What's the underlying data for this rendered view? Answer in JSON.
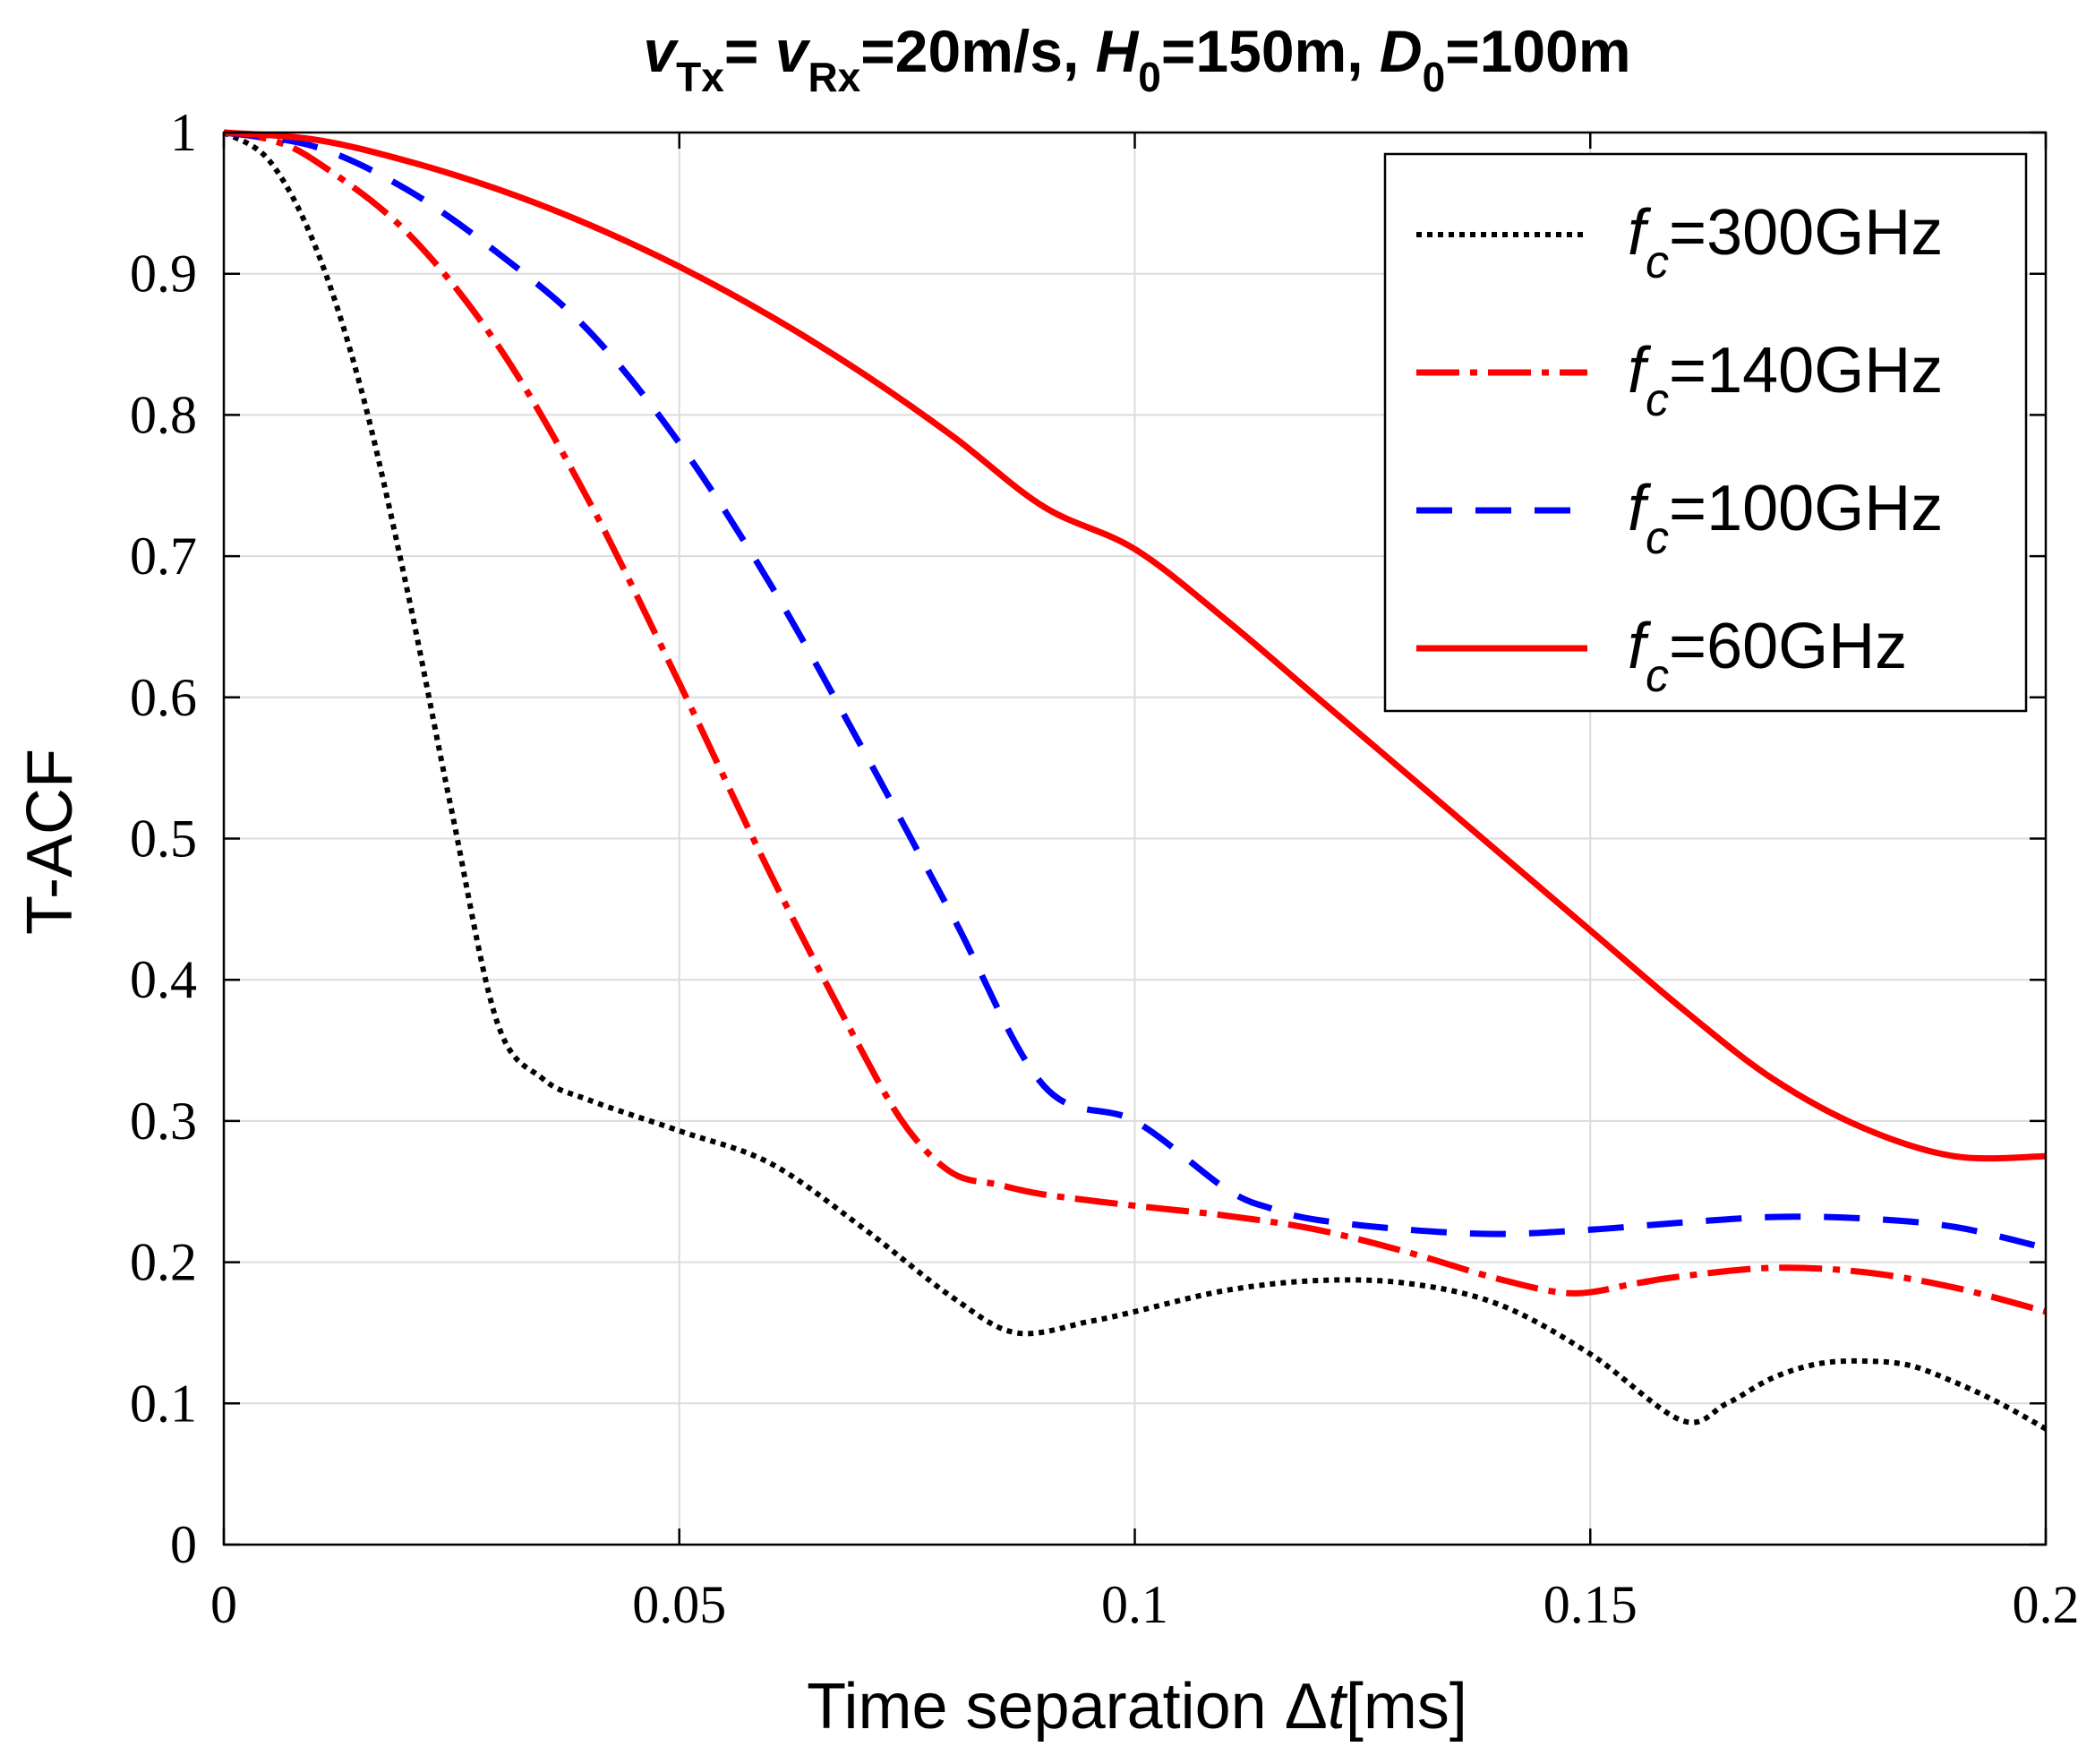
{
  "chart_data": {
    "type": "line",
    "title": {
      "parts": [
        {
          "text": "v",
          "italic": true
        },
        {
          "text": "Tx",
          "sub": true
        },
        {
          "text": "= "
        },
        {
          "text": "v",
          "italic": true
        },
        {
          "text": "Rx",
          "sub": true
        },
        {
          "text": "=20m/s,  "
        },
        {
          "text": "H",
          "italic": true
        },
        {
          "text": "0",
          "sub": true
        },
        {
          "text": "=150m,  "
        },
        {
          "text": "D",
          "italic": true
        },
        {
          "text": "0",
          "sub": true
        },
        {
          "text": "=100m"
        }
      ]
    },
    "xlabel": {
      "prefix": "Time separation Δ",
      "var": "t",
      "suffix": "[ms]"
    },
    "ylabel": "T-ACF",
    "xlim": [
      0,
      0.2
    ],
    "ylim": [
      0,
      1
    ],
    "xticks": [
      0,
      0.05,
      0.1,
      0.15,
      0.2
    ],
    "xtick_labels": [
      "0",
      "0.05",
      "0.1",
      "0.15",
      "0.2"
    ],
    "yticks": [
      0,
      0.1,
      0.2,
      0.3,
      0.4,
      0.5,
      0.6,
      0.7,
      0.8,
      0.9,
      1
    ],
    "ytick_labels": [
      "0",
      "0.1",
      "0.2",
      "0.3",
      "0.4",
      "0.5",
      "0.6",
      "0.7",
      "0.8",
      "0.9",
      "1"
    ],
    "grid": true,
    "legend": {
      "placement": "top-right"
    },
    "series": [
      {
        "name": "fc=300GHz",
        "label_var": "f",
        "label_sub": "c",
        "label_value": "=300GHz",
        "color": "#000000",
        "style": "dotted",
        "x": [
          0,
          0.005,
          0.01,
          0.015,
          0.02,
          0.025,
          0.03,
          0.035,
          0.04,
          0.05,
          0.06,
          0.07,
          0.08,
          0.087,
          0.095,
          0.1,
          0.11,
          0.12,
          0.13,
          0.14,
          0.15,
          0.16,
          0.165,
          0.17,
          0.175,
          0.18,
          0.185,
          0.19,
          0.195,
          0.2
        ],
        "y": [
          1,
          0.98,
          0.92,
          0.82,
          0.68,
          0.52,
          0.37,
          0.33,
          0.315,
          0.293,
          0.27,
          0.225,
          0.175,
          0.15,
          0.158,
          0.165,
          0.18,
          0.187,
          0.185,
          0.17,
          0.135,
          0.088,
          0.1,
          0.118,
          0.128,
          0.13,
          0.127,
          0.115,
          0.1,
          0.082
        ]
      },
      {
        "name": "fc=140GHz",
        "label_var": "f",
        "label_sub": "c",
        "label_value": "=140GHz",
        "color": "#ff0000",
        "style": "dash-dot",
        "x": [
          0,
          0.005,
          0.01,
          0.02,
          0.03,
          0.04,
          0.05,
          0.06,
          0.07,
          0.075,
          0.08,
          0.085,
          0.09,
          0.1,
          0.11,
          0.12,
          0.13,
          0.14,
          0.148,
          0.155,
          0.16,
          0.17,
          0.18,
          0.19,
          0.2
        ],
        "y": [
          1,
          0.995,
          0.98,
          0.93,
          0.85,
          0.74,
          0.61,
          0.475,
          0.35,
          0.295,
          0.263,
          0.255,
          0.248,
          0.24,
          0.233,
          0.223,
          0.207,
          0.188,
          0.178,
          0.185,
          0.19,
          0.196,
          0.193,
          0.182,
          0.165
        ]
      },
      {
        "name": "fc=100GHz",
        "label_var": "f",
        "label_sub": "c",
        "label_value": "=100GHz",
        "color": "#0000ff",
        "style": "dashed",
        "x": [
          0,
          0.01,
          0.02,
          0.03,
          0.04,
          0.05,
          0.06,
          0.07,
          0.08,
          0.09,
          0.1,
          0.11,
          0.115,
          0.12,
          0.13,
          0.14,
          0.15,
          0.16,
          0.17,
          0.18,
          0.19,
          0.2
        ],
        "y": [
          1,
          0.99,
          0.96,
          0.915,
          0.86,
          0.78,
          0.68,
          0.565,
          0.445,
          0.325,
          0.3,
          0.252,
          0.238,
          0.23,
          0.223,
          0.22,
          0.223,
          0.228,
          0.232,
          0.231,
          0.225,
          0.21
        ]
      },
      {
        "name": "fc=60GHz",
        "label_var": "f",
        "label_sub": "c",
        "label_value": "=60GHz",
        "color": "#ff0000",
        "style": "solid",
        "x": [
          0,
          0.01,
          0.02,
          0.03,
          0.04,
          0.05,
          0.06,
          0.07,
          0.08,
          0.09,
          0.1,
          0.11,
          0.12,
          0.13,
          0.14,
          0.15,
          0.16,
          0.17,
          0.18,
          0.19,
          0.2
        ],
        "y": [
          1,
          0.995,
          0.98,
          0.96,
          0.935,
          0.905,
          0.87,
          0.83,
          0.785,
          0.735,
          0.705,
          0.655,
          0.6,
          0.545,
          0.49,
          0.435,
          0.38,
          0.33,
          0.295,
          0.275,
          0.275
        ]
      }
    ]
  }
}
